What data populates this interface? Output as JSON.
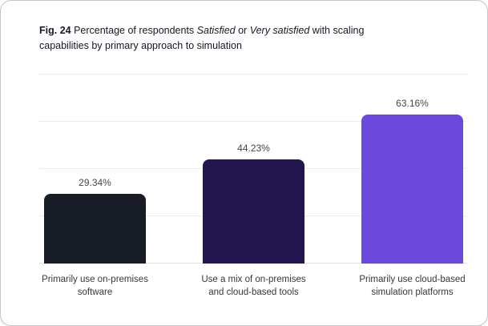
{
  "card": {
    "figure_label": "Fig. 24",
    "title_lead": "Percentage of respondents",
    "title_italic_1": "Satisfied",
    "title_conjunction": "or",
    "title_italic_2": "Very satisfied",
    "title_rest": "with scaling capabilities by primary approach to simulation"
  },
  "chart_data": {
    "type": "bar",
    "title": "Fig. 24 Percentage of respondents Satisfied or Very satisfied with scaling capabilities by primary approach to simulation",
    "categories": [
      "Primarily use on-premises software",
      "Use a mix of on-premises and cloud-based tools",
      "Primarily use cloud-based simulation platforms"
    ],
    "category_lines": [
      [
        "Primarily use on-premises",
        "software"
      ],
      [
        "Use a mix of on-premises",
        "and cloud-based tools"
      ],
      [
        "Primarily use cloud-based",
        "simulation platforms"
      ]
    ],
    "values": [
      29.34,
      44.23,
      63.16
    ],
    "value_labels": [
      "29.34%",
      "44.23%",
      "63.16%"
    ],
    "bar_colors": [
      "#181c27",
      "#231650",
      "#6a49dc"
    ],
    "xlabel": "",
    "ylabel": "",
    "ylim": [
      0,
      80
    ],
    "grid_step": 20,
    "grid": true,
    "legend": false,
    "value_labels_position": "above-bars"
  },
  "colors": {
    "grid_line": "#ececef",
    "baseline": "#e2e2e7",
    "value_label": "#42454d",
    "category_label": "#35373c",
    "title": "#141823",
    "card_background": "#ffffff",
    "card_border": "#c6c6cc"
  }
}
